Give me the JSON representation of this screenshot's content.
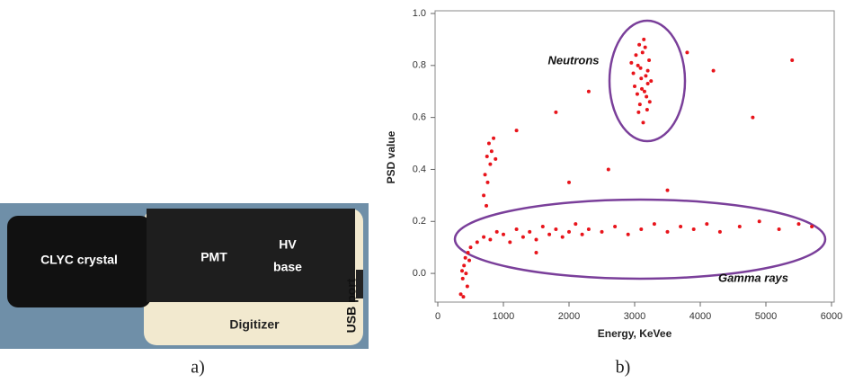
{
  "photo": {
    "crystal": "CLYC crystal",
    "pmt": "PMT",
    "hv_base": [
      "HV",
      "base"
    ],
    "digitizer": "Digitizer",
    "usb": "USB port"
  },
  "panels": [
    "a)",
    "b)"
  ],
  "chart_data": {
    "type": "scatter",
    "x_label": "Energy, KeVee",
    "y_label": "PSD value",
    "annotations": [
      "Neutrons",
      "Gamma rays"
    ],
    "xlim": [
      0,
      6000
    ],
    "xticks": [
      0,
      1000,
      2000,
      3000,
      4000,
      5000,
      6000
    ],
    "ylim": [
      -0.1,
      1.0
    ],
    "yticks": [
      {
        "value": 0,
        "label": "0.0"
      },
      0.2,
      0.4,
      0.6,
      0.8,
      {
        "value": 1,
        "label": "1.0"
      }
    ],
    "grid": false,
    "series": [
      {
        "color": "#e8141b",
        "x": [
          3100,
          3050,
          3150,
          3200,
          3000,
          3120,
          3080,
          3180,
          3220,
          2980,
          3140,
          3060,
          3250,
          3020,
          3170,
          3110,
          3090,
          3230,
          2950,
          3130,
          3160,
          3040,
          3200,
          3070,
          3190,
          500,
          600,
          700,
          800,
          900,
          1000,
          1100,
          1200,
          1300,
          1400,
          1500,
          1600,
          1700,
          1800,
          1900,
          2000,
          2100,
          2200,
          2300,
          2500,
          2700,
          2900,
          3100,
          3300,
          3500,
          3700,
          3900,
          4100,
          4300,
          4600,
          4900,
          5200,
          5500,
          5700,
          1500,
          700,
          720,
          750,
          780,
          800,
          820,
          760,
          850,
          740,
          880,
          350,
          380,
          400,
          420,
          450,
          370,
          460,
          390,
          430,
          480,
          1200,
          1800,
          2300,
          2600,
          3800,
          4200,
          5400,
          4800,
          2000,
          3500
        ],
        "y": [
          0.75,
          0.8,
          0.7,
          0.78,
          0.72,
          0.85,
          0.65,
          0.68,
          0.82,
          0.77,
          0.9,
          0.62,
          0.74,
          0.84,
          0.76,
          0.71,
          0.79,
          0.66,
          0.81,
          0.58,
          0.87,
          0.69,
          0.73,
          0.88,
          0.63,
          0.1,
          0.12,
          0.14,
          0.13,
          0.16,
          0.15,
          0.12,
          0.17,
          0.14,
          0.16,
          0.13,
          0.18,
          0.15,
          0.17,
          0.14,
          0.16,
          0.19,
          0.15,
          0.17,
          0.16,
          0.18,
          0.15,
          0.17,
          0.19,
          0.16,
          0.18,
          0.17,
          0.19,
          0.16,
          0.18,
          0.2,
          0.17,
          0.19,
          0.18,
          0.08,
          0.3,
          0.38,
          0.45,
          0.5,
          0.42,
          0.47,
          0.35,
          0.52,
          0.26,
          0.44,
          -0.08,
          -0.02,
          0.03,
          0.06,
          -0.05,
          0.01,
          0.08,
          -0.09,
          0.0,
          0.05,
          0.55,
          0.62,
          0.7,
          0.4,
          0.85,
          0.78,
          0.82,
          0.6,
          0.35,
          0.32
        ]
      }
    ]
  }
}
